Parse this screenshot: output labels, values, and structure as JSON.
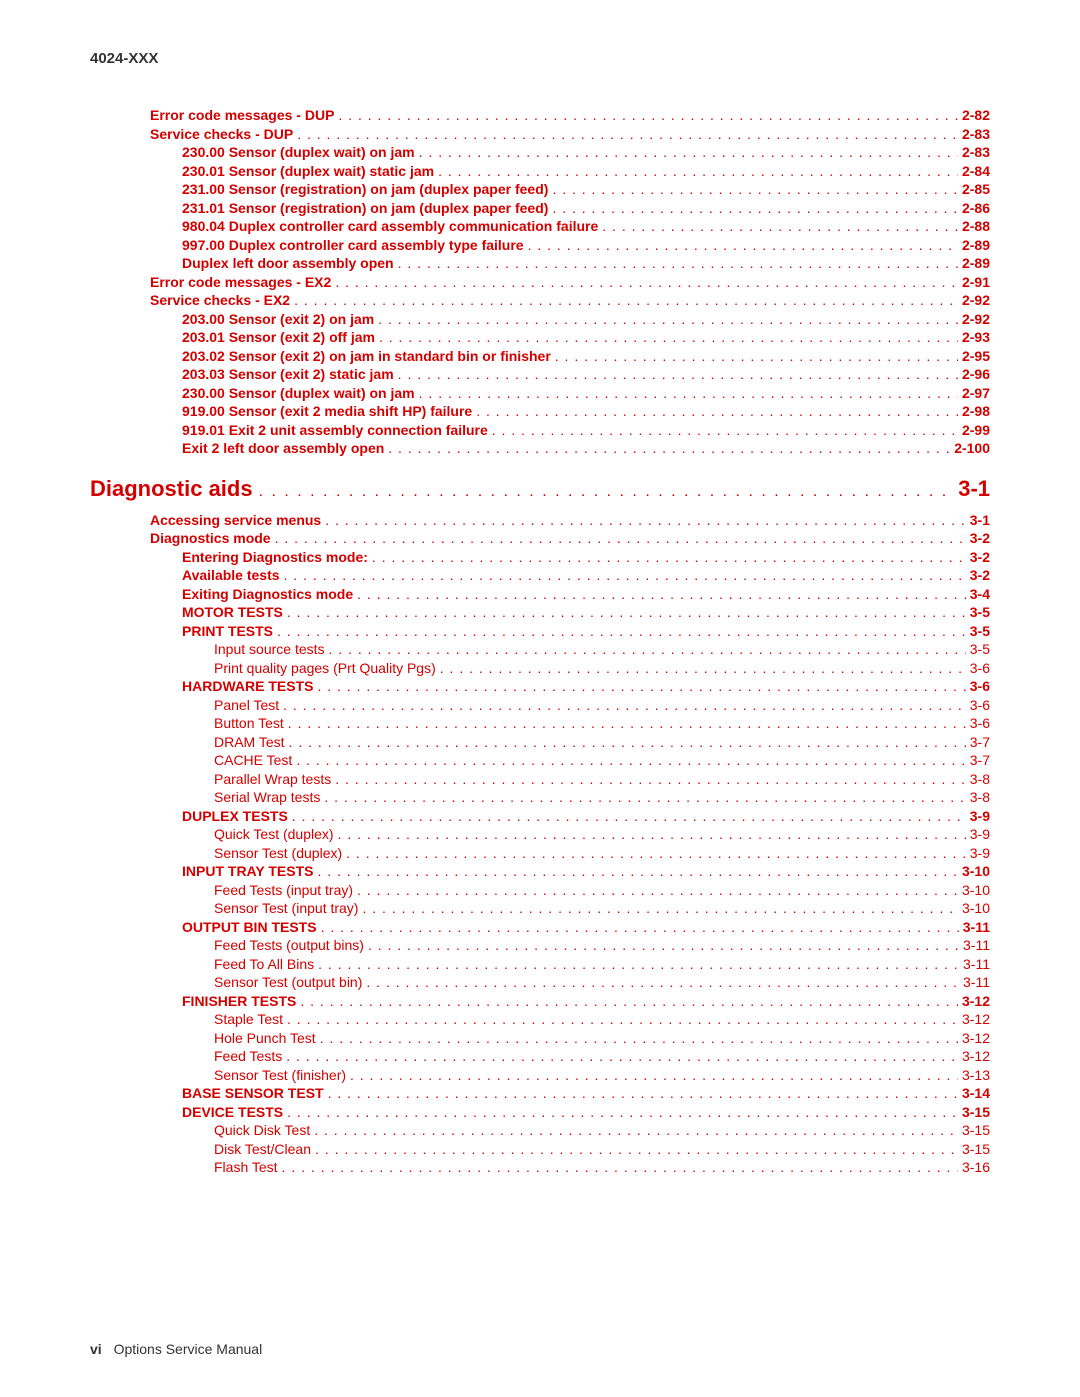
{
  "header": {
    "doc_code": "4024-XXX"
  },
  "footer": {
    "page_roman": "vi",
    "title": "Options Service Manual"
  },
  "colors": {
    "accent": "#d40000",
    "text": "#333333",
    "background": "#ffffff"
  },
  "typography": {
    "body_font": "Arial",
    "body_size_pt": 11,
    "section_size_pt": 18
  },
  "toc": {
    "block_a": [
      {
        "level": 1,
        "label": "Error code messages - DUP",
        "page": "2-82"
      },
      {
        "level": 1,
        "label": "Service checks - DUP",
        "page": "2-83"
      },
      {
        "level": 2,
        "label": "230.00 Sensor (duplex wait) on jam",
        "page": "2-83"
      },
      {
        "level": 2,
        "label": "230.01 Sensor (duplex wait) static jam",
        "page": "2-84"
      },
      {
        "level": 2,
        "label": "231.00 Sensor (registration) on jam (duplex paper feed)",
        "page": "2-85"
      },
      {
        "level": 2,
        "label": "231.01 Sensor (registration) on jam (duplex paper feed)",
        "page": "2-86"
      },
      {
        "level": 2,
        "label": "980.04 Duplex controller card assembly communication failure",
        "page": "2-88"
      },
      {
        "level": 2,
        "label": "997.00 Duplex controller card assembly type failure",
        "page": "2-89"
      },
      {
        "level": 2,
        "label": "Duplex left door assembly open",
        "page": "2-89"
      },
      {
        "level": 1,
        "label": "Error code messages - EX2",
        "page": "2-91"
      },
      {
        "level": 1,
        "label": "Service checks - EX2",
        "page": "2-92"
      },
      {
        "level": 2,
        "label": "203.00 Sensor (exit 2) on jam",
        "page": "2-92"
      },
      {
        "level": 2,
        "label": "203.01 Sensor (exit 2) off jam",
        "page": "2-93"
      },
      {
        "level": 2,
        "label": "203.02 Sensor (exit 2) on jam in standard bin or finisher",
        "page": "2-95"
      },
      {
        "level": 2,
        "label": "203.03 Sensor (exit 2) static jam",
        "page": "2-96"
      },
      {
        "level": 2,
        "label": "230.00 Sensor (duplex wait) on jam",
        "page": "2-97"
      },
      {
        "level": 2,
        "label": "919.00 Sensor (exit 2 media shift HP) failure",
        "page": "2-98"
      },
      {
        "level": 2,
        "label": "919.01 Exit 2 unit assembly connection failure",
        "page": "2-99"
      },
      {
        "level": 2,
        "label": "Exit 2 left door assembly open",
        "page": "2-100"
      }
    ],
    "section": {
      "title": "Diagnostic aids",
      "page": "3-1"
    },
    "block_b": [
      {
        "level": 1,
        "label": "Accessing service menus",
        "page": "3-1"
      },
      {
        "level": 1,
        "label": "Diagnostics mode",
        "page": "3-2"
      },
      {
        "level": 2,
        "label": "Entering Diagnostics mode:",
        "page": "3-2"
      },
      {
        "level": 2,
        "label": "Available tests",
        "page": "3-2"
      },
      {
        "level": 2,
        "label": "Exiting Diagnostics mode",
        "page": "3-4"
      },
      {
        "level": 2,
        "label": "MOTOR TESTS",
        "page": "3-5"
      },
      {
        "level": 2,
        "label": "PRINT TESTS",
        "page": "3-5"
      },
      {
        "level": 3,
        "label": "Input source tests",
        "page": "3-5"
      },
      {
        "level": 3,
        "label": "Print quality pages (Prt Quality Pgs)",
        "page": "3-6"
      },
      {
        "level": 2,
        "label": "HARDWARE TESTS",
        "page": "3-6"
      },
      {
        "level": 3,
        "label": "Panel Test",
        "page": "3-6"
      },
      {
        "level": 3,
        "label": "Button Test",
        "page": "3-6"
      },
      {
        "level": 3,
        "label": "DRAM Test",
        "page": "3-7"
      },
      {
        "level": 3,
        "label": "CACHE Test",
        "page": "3-7"
      },
      {
        "level": 3,
        "label": "Parallel Wrap tests",
        "page": "3-8"
      },
      {
        "level": 3,
        "label": "Serial Wrap tests",
        "page": "3-8"
      },
      {
        "level": 2,
        "label": "DUPLEX TESTS",
        "page": "3-9"
      },
      {
        "level": 3,
        "label": "Quick Test (duplex)",
        "page": "3-9"
      },
      {
        "level": 3,
        "label": "Sensor Test (duplex)",
        "page": "3-9"
      },
      {
        "level": 2,
        "label": "INPUT TRAY TESTS",
        "page": "3-10"
      },
      {
        "level": 3,
        "label": "Feed Tests (input tray)",
        "page": "3-10"
      },
      {
        "level": 3,
        "label": "Sensor Test (input tray)",
        "page": "3-10"
      },
      {
        "level": 2,
        "label": "OUTPUT BIN TESTS",
        "page": "3-11"
      },
      {
        "level": 3,
        "label": "Feed Tests (output bins)",
        "page": "3-11"
      },
      {
        "level": 3,
        "label": "Feed To All Bins",
        "page": "3-11"
      },
      {
        "level": 3,
        "label": "Sensor Test (output bin)",
        "page": "3-11"
      },
      {
        "level": 2,
        "label": "FINISHER TESTS",
        "page": "3-12"
      },
      {
        "level": 3,
        "label": "Staple Test",
        "page": "3-12"
      },
      {
        "level": 3,
        "label": "Hole Punch Test",
        "page": "3-12"
      },
      {
        "level": 3,
        "label": "Feed Tests",
        "page": "3-12"
      },
      {
        "level": 3,
        "label": "Sensor Test (finisher)",
        "page": "3-13"
      },
      {
        "level": 2,
        "label": "BASE SENSOR TEST",
        "page": "3-14"
      },
      {
        "level": 2,
        "label": "DEVICE TESTS",
        "page": "3-15"
      },
      {
        "level": 3,
        "label": "Quick Disk Test",
        "page": "3-15"
      },
      {
        "level": 3,
        "label": "Disk Test/Clean",
        "page": "3-15"
      },
      {
        "level": 3,
        "label": "Flash Test",
        "page": "3-16"
      }
    ]
  }
}
